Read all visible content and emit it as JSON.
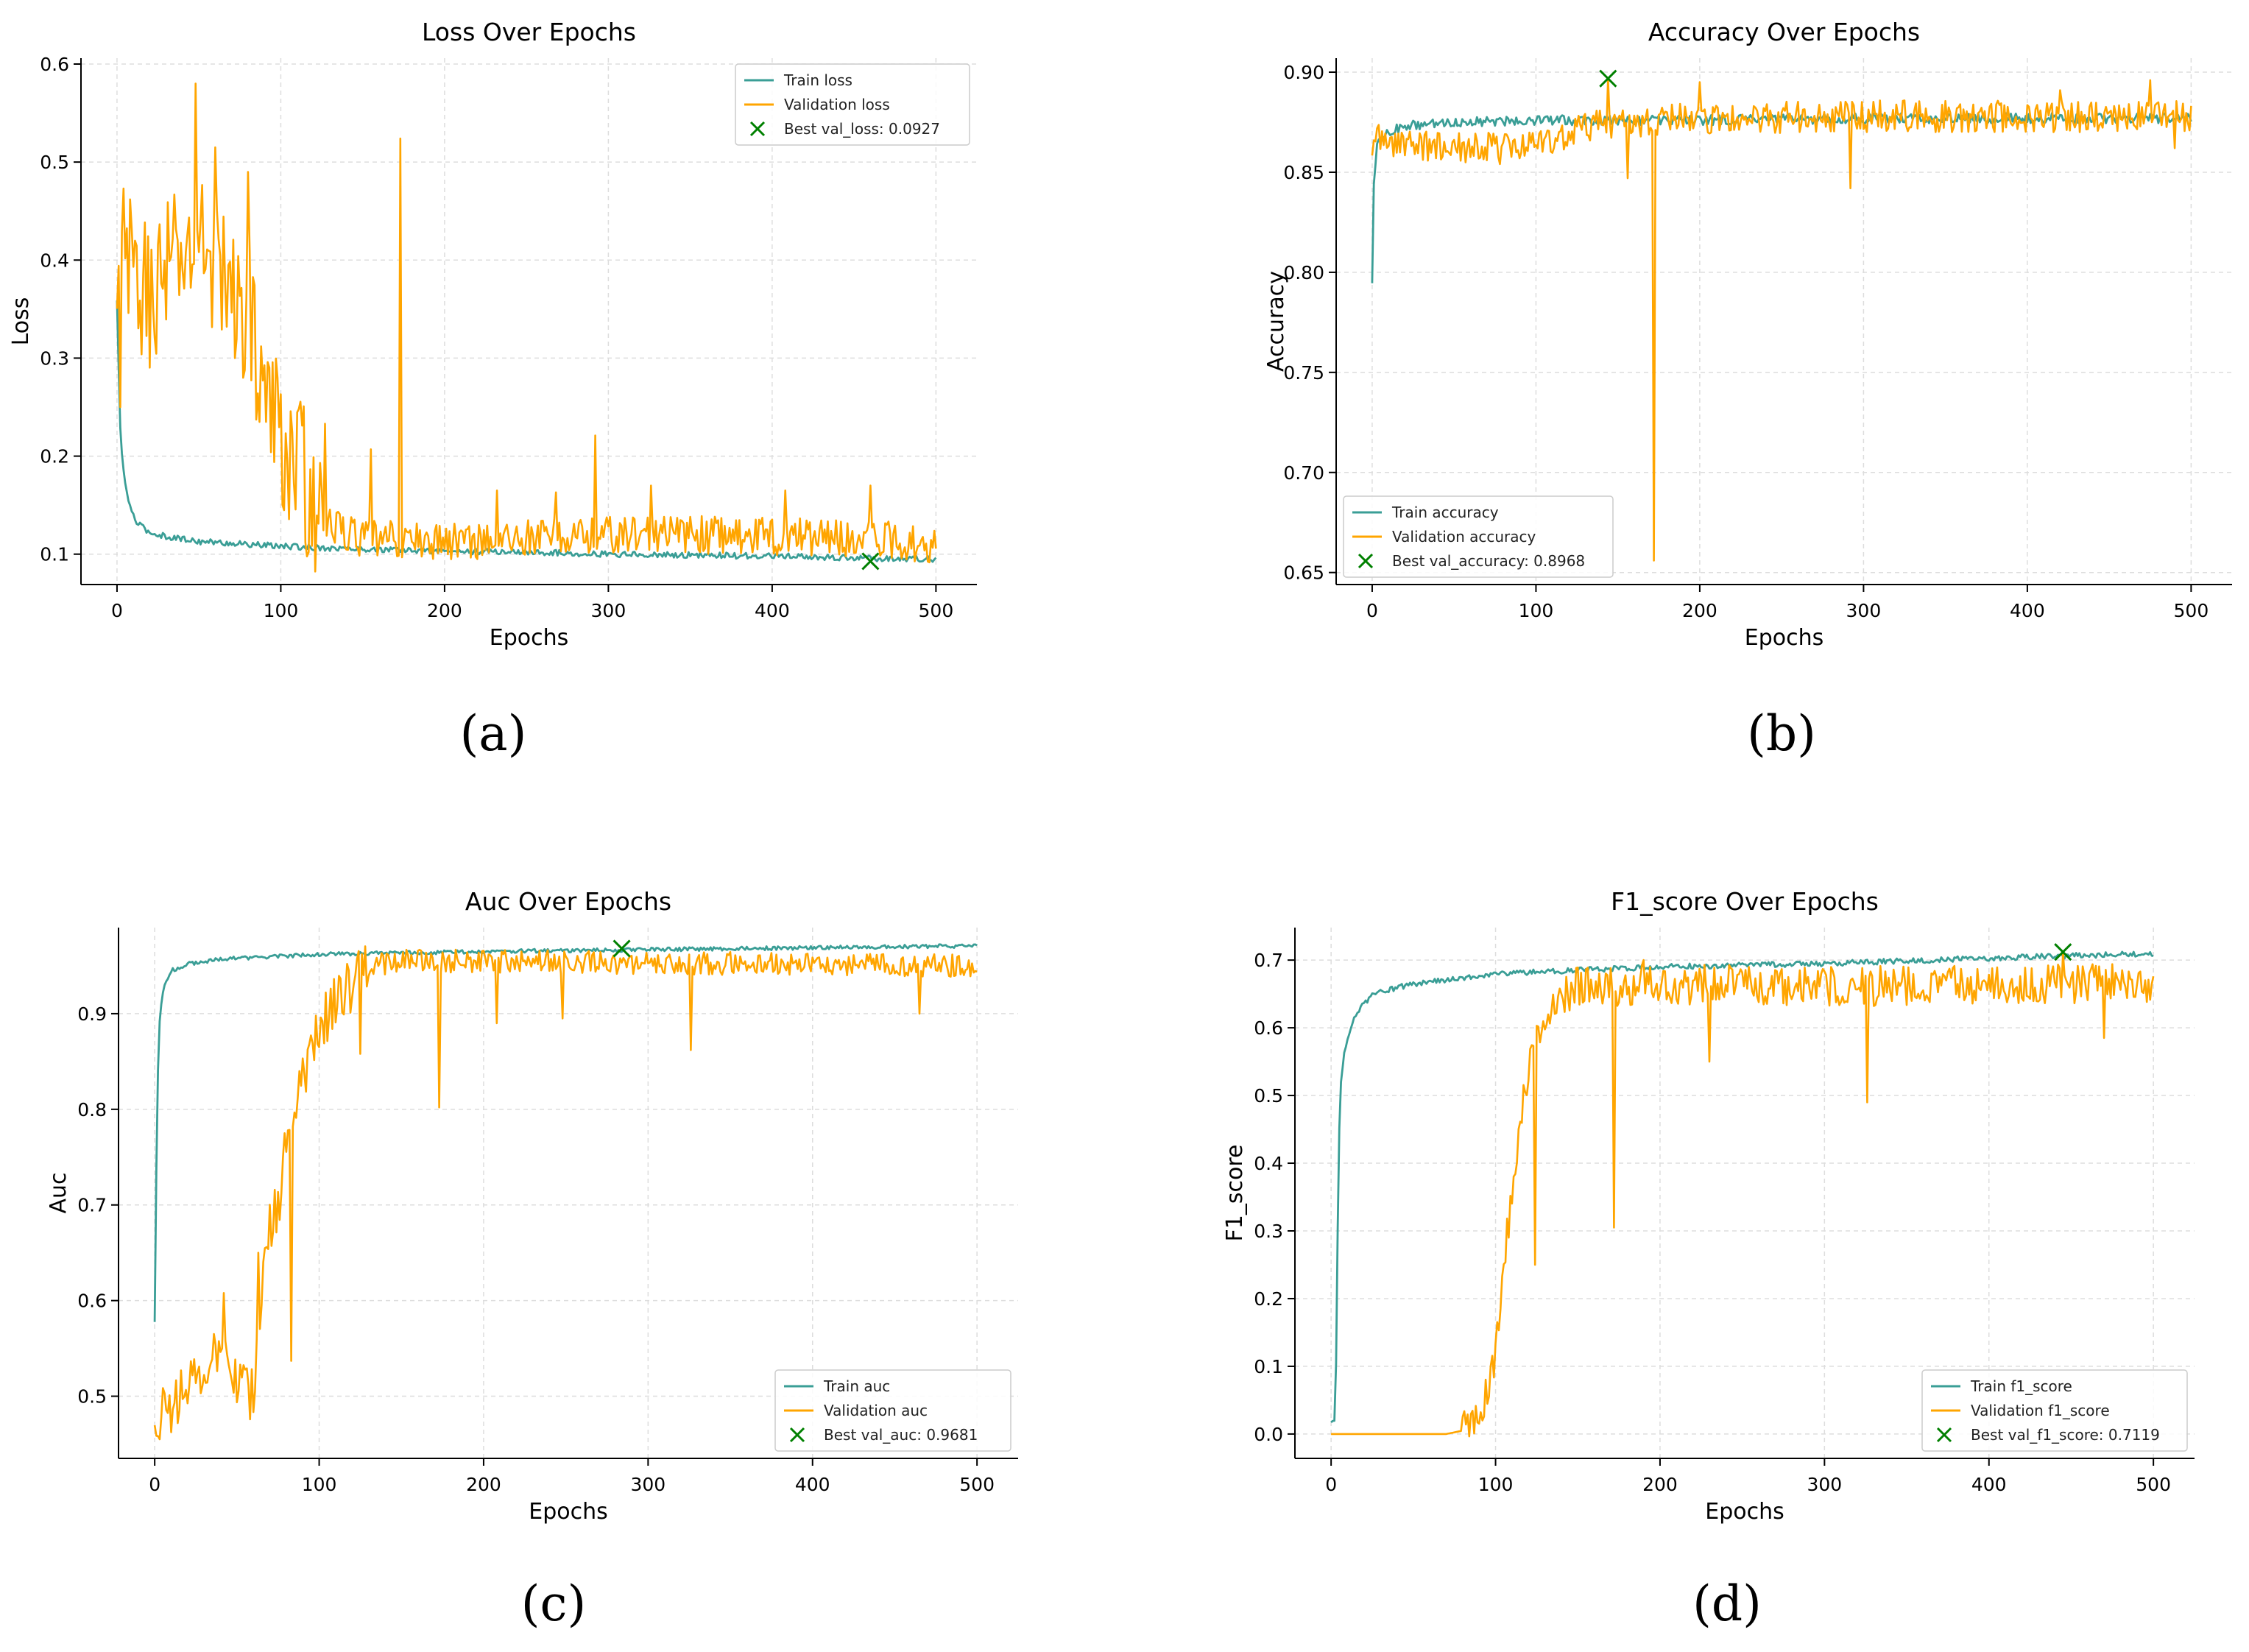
{
  "figure": {
    "panel_labels": [
      "(a)",
      "(b)",
      "(c)",
      "(d)"
    ],
    "colors": {
      "train": "#3a9e96",
      "val": "#ffa500",
      "best": "#008000",
      "grid": "#dddddd",
      "axis": "#000000"
    }
  },
  "chart_data": [
    {
      "type": "line",
      "title": "Loss Over Epochs",
      "xlabel": "Epochs",
      "ylabel": "Loss",
      "xlim": [
        -22,
        525
      ],
      "ylim": [
        0.069,
        0.606
      ],
      "xticks": [
        0,
        100,
        200,
        300,
        400,
        500
      ],
      "yticks": [
        0.1,
        0.2,
        0.3,
        0.4,
        0.5,
        0.6
      ],
      "ytick_labels": [
        "0.1",
        "0.2",
        "0.3",
        "0.4",
        "0.5",
        "0.6"
      ],
      "grid": true,
      "legend_position": "top-right",
      "series": [
        {
          "name": "Train loss",
          "role": "train",
          "x": [
            0,
            1,
            2,
            3,
            5,
            8,
            12,
            20,
            30,
            50,
            80,
            100,
            150,
            200,
            250,
            300,
            350,
            400,
            450,
            500
          ],
          "values": [
            0.358,
            0.29,
            0.23,
            0.2,
            0.172,
            0.148,
            0.132,
            0.122,
            0.118,
            0.113,
            0.11,
            0.108,
            0.105,
            0.103,
            0.102,
            0.1,
            0.099,
            0.098,
            0.096,
            0.095
          ],
          "noise": 0.003
        },
        {
          "name": "Validation loss",
          "role": "val",
          "x": [
            0,
            2,
            5,
            10,
            20,
            30,
            40,
            50,
            60,
            70,
            80,
            85,
            90,
            95,
            100,
            110,
            120,
            130,
            150,
            200,
            250,
            300,
            350,
            400,
            450,
            500
          ],
          "values": [
            0.33,
            0.37,
            0.4,
            0.38,
            0.36,
            0.39,
            0.4,
            0.42,
            0.4,
            0.36,
            0.35,
            0.31,
            0.27,
            0.24,
            0.22,
            0.19,
            0.16,
            0.13,
            0.115,
            0.113,
            0.117,
            0.12,
            0.12,
            0.119,
            0.117,
            0.11
          ],
          "noise": 0.075,
          "noise_decay_at": 125,
          "noise_after": 0.02,
          "spikes": [
            [
              2,
              0.25
            ],
            [
              4,
              0.473
            ],
            [
              48,
              0.58
            ],
            [
              60,
              0.515
            ],
            [
              72,
              0.3
            ],
            [
              80,
              0.49
            ],
            [
              127,
              0.233
            ],
            [
              155,
              0.207
            ],
            [
              173,
              0.524
            ],
            [
              232,
              0.165
            ],
            [
              268,
              0.163
            ],
            [
              292,
              0.221
            ],
            [
              326,
              0.17
            ],
            [
              408,
              0.165
            ],
            [
              460,
              0.17
            ],
            [
              470,
              0.13
            ]
          ]
        },
        {
          "name": "Best val_loss: 0.0927",
          "role": "best",
          "type": "scatter",
          "x": [
            460
          ],
          "values": [
            0.0927
          ]
        }
      ]
    },
    {
      "type": "line",
      "title": "Accuracy Over Epochs",
      "xlabel": "Epochs",
      "ylabel": "Accuracy",
      "xlim": [
        -22,
        525
      ],
      "ylim": [
        0.644,
        0.907
      ],
      "xticks": [
        0,
        100,
        200,
        300,
        400,
        500
      ],
      "yticks": [
        0.65,
        0.7,
        0.75,
        0.8,
        0.85,
        0.9
      ],
      "ytick_labels": [
        "0.65",
        "0.70",
        "0.75",
        "0.80",
        "0.85",
        "0.90"
      ],
      "grid": true,
      "legend_position": "bottom-left",
      "series": [
        {
          "name": "Train accuracy",
          "role": "train",
          "x": [
            0,
            1,
            2,
            3,
            5,
            10,
            20,
            50,
            100,
            200,
            300,
            400,
            500
          ],
          "values": [
            0.797,
            0.845,
            0.856,
            0.862,
            0.866,
            0.87,
            0.873,
            0.875,
            0.876,
            0.876,
            0.877,
            0.877,
            0.877
          ],
          "noise": 0.0025
        },
        {
          "name": "Validation accuracy",
          "role": "val",
          "x": [
            0,
            10,
            30,
            60,
            90,
            120,
            150,
            200,
            300,
            400,
            500
          ],
          "values": [
            0.866,
            0.866,
            0.863,
            0.862,
            0.862,
            0.87,
            0.875,
            0.877,
            0.878,
            0.878,
            0.878
          ],
          "noise": 0.008,
          "spikes": [
            [
              3,
              0.872
            ],
            [
              144,
              0.8968
            ],
            [
              156,
              0.847
            ],
            [
              172,
              0.656
            ],
            [
              200,
              0.895
            ],
            [
              292,
              0.842
            ],
            [
              420,
              0.891
            ],
            [
              475,
              0.896
            ],
            [
              490,
              0.862
            ]
          ]
        },
        {
          "name": "Best val_accuracy: 0.8968",
          "role": "best",
          "type": "scatter",
          "x": [
            144
          ],
          "values": [
            0.8968
          ]
        }
      ]
    },
    {
      "type": "line",
      "title": "Auc Over Epochs",
      "xlabel": "Epochs",
      "ylabel": "Auc",
      "xlim": [
        -22,
        525
      ],
      "ylim": [
        0.435,
        0.99
      ],
      "xticks": [
        0,
        100,
        200,
        300,
        400,
        500
      ],
      "yticks": [
        0.5,
        0.6,
        0.7,
        0.8,
        0.9
      ],
      "ytick_labels": [
        "0.5",
        "0.6",
        "0.7",
        "0.8",
        "0.9"
      ],
      "grid": true,
      "legend_position": "bottom-right",
      "series": [
        {
          "name": "Train auc",
          "role": "train",
          "x": [
            0,
            1,
            2,
            3,
            4,
            6,
            10,
            20,
            40,
            100,
            200,
            300,
            400,
            500
          ],
          "values": [
            0.578,
            0.74,
            0.84,
            0.89,
            0.91,
            0.93,
            0.945,
            0.952,
            0.957,
            0.962,
            0.965,
            0.967,
            0.969,
            0.971
          ],
          "noise": 0.002
        },
        {
          "name": "Validation auc",
          "role": "val",
          "x": [
            0,
            10,
            20,
            30,
            40,
            50,
            60,
            65,
            70,
            75,
            80,
            85,
            90,
            95,
            100,
            110,
            120,
            130,
            150,
            200,
            300,
            400,
            500
          ],
          "values": [
            0.475,
            0.49,
            0.51,
            0.53,
            0.55,
            0.52,
            0.5,
            0.6,
            0.68,
            0.7,
            0.74,
            0.8,
            0.84,
            0.86,
            0.89,
            0.91,
            0.93,
            0.95,
            0.955,
            0.955,
            0.953,
            0.952,
            0.95
          ],
          "noise": 0.03,
          "noise_decay_at": 130,
          "noise_after": 0.012,
          "spikes": [
            [
              3,
              0.455
            ],
            [
              42,
              0.608
            ],
            [
              63,
              0.65
            ],
            [
              79,
              0.775
            ],
            [
              83,
              0.537
            ],
            [
              88,
              0.84
            ],
            [
              125,
              0.858
            ],
            [
              173,
              0.802
            ],
            [
              208,
              0.89
            ],
            [
              248,
              0.895
            ],
            [
              326,
              0.862
            ],
            [
              465,
              0.9
            ],
            [
              480,
              0.96
            ]
          ]
        },
        {
          "name": "Best val_auc: 0.9681",
          "role": "best",
          "type": "scatter",
          "x": [
            284
          ],
          "values": [
            0.9681
          ]
        }
      ]
    },
    {
      "type": "line",
      "title": "F1_score Over Epochs",
      "xlabel": "Epochs",
      "ylabel": "F1_score",
      "xlim": [
        -22,
        525
      ],
      "ylim": [
        -0.036,
        0.748
      ],
      "xticks": [
        0,
        100,
        200,
        300,
        400,
        500
      ],
      "yticks": [
        0.0,
        0.1,
        0.2,
        0.3,
        0.4,
        0.5,
        0.6,
        0.7
      ],
      "ytick_labels": [
        "0.0",
        "0.1",
        "0.2",
        "0.3",
        "0.4",
        "0.5",
        "0.6",
        "0.7"
      ],
      "grid": true,
      "legend_position": "bottom-right",
      "series": [
        {
          "name": "Train f1_score",
          "role": "train",
          "x": [
            0,
            2,
            3,
            4,
            5,
            6,
            8,
            10,
            15,
            25,
            50,
            100,
            200,
            300,
            400,
            500
          ],
          "values": [
            0.015,
            0.02,
            0.1,
            0.3,
            0.45,
            0.52,
            0.56,
            0.58,
            0.62,
            0.65,
            0.665,
            0.68,
            0.69,
            0.695,
            0.703,
            0.71
          ],
          "noise": 0.004
        },
        {
          "name": "Validation f1_score",
          "role": "val",
          "x": [
            0,
            70,
            80,
            85,
            90,
            95,
            100,
            105,
            110,
            115,
            120,
            125,
            130,
            140,
            150,
            200,
            300,
            400,
            500
          ],
          "values": [
            0.0,
            0.0,
            0.005,
            0.02,
            0.03,
            0.06,
            0.12,
            0.25,
            0.35,
            0.45,
            0.55,
            0.58,
            0.62,
            0.65,
            0.66,
            0.665,
            0.66,
            0.665,
            0.665
          ],
          "noise": 0.03,
          "noise_start": 80,
          "spikes": [
            [
              108,
              0.29
            ],
            [
              124,
              0.25
            ],
            [
              172,
              0.305
            ],
            [
              190,
              0.7
            ],
            [
              230,
              0.55
            ],
            [
              326,
              0.49
            ],
            [
              445,
              0.7119
            ],
            [
              470,
              0.585
            ]
          ]
        },
        {
          "name": "Best val_f1_score: 0.7119",
          "role": "best",
          "type": "scatter",
          "x": [
            445
          ],
          "values": [
            0.7119
          ]
        }
      ]
    }
  ]
}
